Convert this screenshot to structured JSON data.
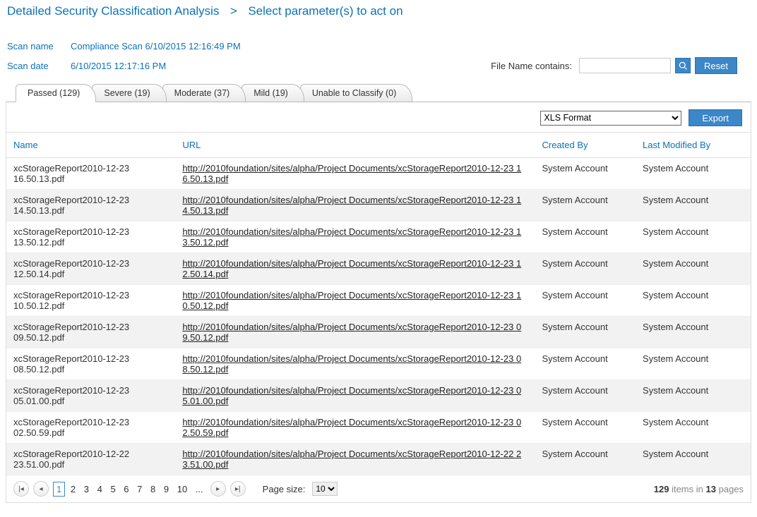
{
  "breadcrumb": {
    "root": "Detailed Security Classification Analysis",
    "current": "Select parameter(s) to act on"
  },
  "scan": {
    "name_label": "Scan name",
    "name_value": "Compliance Scan 6/10/2015 12:16:49 PM",
    "date_label": "Scan date",
    "date_value": "6/10/2015 12:17:16 PM"
  },
  "filter": {
    "label": "File Name contains:",
    "value": "",
    "reset_label": "Reset"
  },
  "tabs": [
    {
      "label": "Passed (129)",
      "active": true
    },
    {
      "label": "Severe (19)",
      "active": false
    },
    {
      "label": "Moderate (37)",
      "active": false
    },
    {
      "label": "Mild (19)",
      "active": false
    },
    {
      "label": "Unable to Classify (0)",
      "active": false
    }
  ],
  "toolbar": {
    "format_options": [
      "XLS Format"
    ],
    "export_label": "Export"
  },
  "columns": {
    "name": "Name",
    "url": "URL",
    "created_by": "Created By",
    "last_modified_by": "Last Modified By"
  },
  "rows": [
    {
      "name": "xcStorageReport2010-12-23 16.50.13.pdf",
      "url": "http://2010foundation/sites/alpha/Project Documents/xcStorageReport2010-12-23 16.50.13.pdf",
      "created_by": "System Account",
      "modified_by": "System Account"
    },
    {
      "name": "xcStorageReport2010-12-23 14.50.13.pdf",
      "url": "http://2010foundation/sites/alpha/Project Documents/xcStorageReport2010-12-23 14.50.13.pdf",
      "created_by": "System Account",
      "modified_by": "System Account"
    },
    {
      "name": "xcStorageReport2010-12-23 13.50.12.pdf",
      "url": "http://2010foundation/sites/alpha/Project Documents/xcStorageReport2010-12-23 13.50.12.pdf",
      "created_by": "System Account",
      "modified_by": "System Account"
    },
    {
      "name": "xcStorageReport2010-12-23 12.50.14.pdf",
      "url": "http://2010foundation/sites/alpha/Project Documents/xcStorageReport2010-12-23 12.50.14.pdf",
      "created_by": "System Account",
      "modified_by": "System Account"
    },
    {
      "name": "xcStorageReport2010-12-23 10.50.12.pdf",
      "url": "http://2010foundation/sites/alpha/Project Documents/xcStorageReport2010-12-23 10.50.12.pdf",
      "created_by": "System Account",
      "modified_by": "System Account"
    },
    {
      "name": "xcStorageReport2010-12-23 09.50.12.pdf",
      "url": "http://2010foundation/sites/alpha/Project Documents/xcStorageReport2010-12-23 09.50.12.pdf",
      "created_by": "System Account",
      "modified_by": "System Account"
    },
    {
      "name": "xcStorageReport2010-12-23 08.50.12.pdf",
      "url": "http://2010foundation/sites/alpha/Project Documents/xcStorageReport2010-12-23 08.50.12.pdf",
      "created_by": "System Account",
      "modified_by": "System Account"
    },
    {
      "name": "xcStorageReport2010-12-23 05.01.00.pdf",
      "url": "http://2010foundation/sites/alpha/Project Documents/xcStorageReport2010-12-23 05.01.00.pdf",
      "created_by": "System Account",
      "modified_by": "System Account"
    },
    {
      "name": "xcStorageReport2010-12-23 02.50.59.pdf",
      "url": "http://2010foundation/sites/alpha/Project Documents/xcStorageReport2010-12-23 02.50.59.pdf",
      "created_by": "System Account",
      "modified_by": "System Account"
    },
    {
      "name": "xcStorageReport2010-12-22 23.51.00.pdf",
      "url": "http://2010foundation/sites/alpha/Project Documents/xcStorageReport2010-12-22 23.51.00.pdf",
      "created_by": "System Account",
      "modified_by": "System Account"
    }
  ],
  "pager": {
    "pages": [
      "1",
      "2",
      "3",
      "4",
      "5",
      "6",
      "7",
      "8",
      "9",
      "10",
      "..."
    ],
    "current_page": "1",
    "page_size_label": "Page size:",
    "page_size_value": "10",
    "total_items": "129",
    "items_word": "items in",
    "total_pages": "13",
    "pages_word": "pages"
  }
}
